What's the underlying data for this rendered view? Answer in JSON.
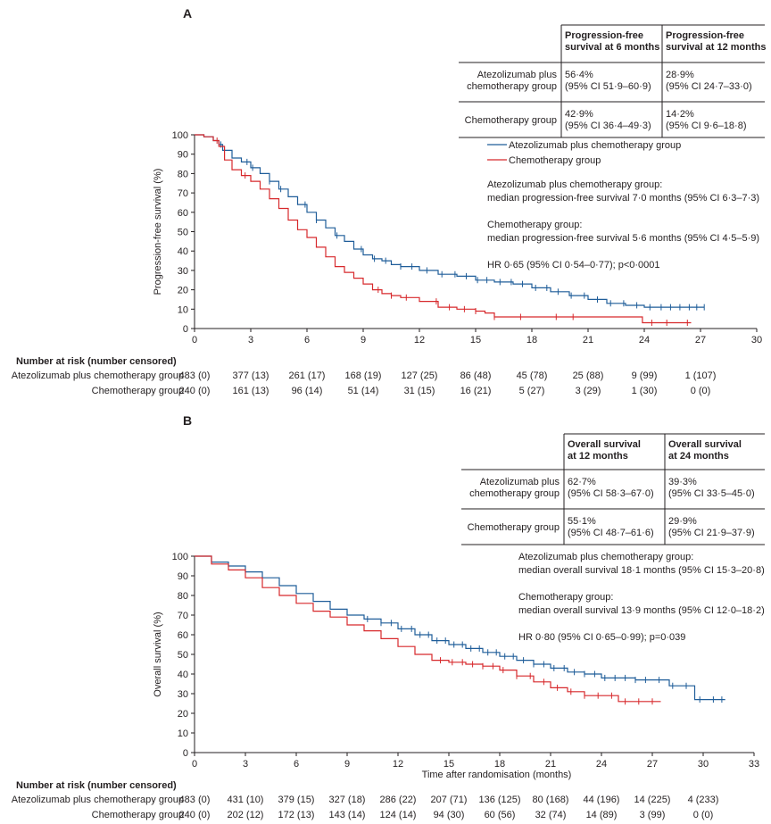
{
  "colors": {
    "atezo": "#1f5d99",
    "chemo": "#d7292c",
    "axis": "#231f20"
  },
  "chart_data": [
    {
      "id": "A",
      "type": "line",
      "panel_label": "A",
      "ylabel": "Progression-free survival (%)",
      "xlabel": "",
      "xlim": [
        0,
        30
      ],
      "ylim": [
        0,
        100
      ],
      "xticks": [
        0,
        3,
        6,
        9,
        12,
        15,
        18,
        21,
        24,
        27,
        30
      ],
      "yticks": [
        0,
        10,
        20,
        30,
        40,
        50,
        60,
        70,
        80,
        90,
        100
      ],
      "legend_position": "right",
      "series": [
        {
          "key": "atezo",
          "name": "Atezolizumab plus chemotherapy group",
          "x": [
            0,
            0.5,
            1,
            1.3,
            1.5,
            2,
            2.5,
            3,
            3.5,
            4,
            4.5,
            5,
            5.5,
            6,
            6.5,
            7,
            7.5,
            8,
            8.5,
            9,
            9.5,
            10,
            10.5,
            11,
            12,
            13,
            14,
            15,
            16,
            17,
            18,
            19,
            20,
            21,
            22,
            23,
            24,
            25,
            26,
            27.2
          ],
          "y": [
            100,
            99,
            97,
            95,
            92,
            88,
            86,
            83,
            80,
            76,
            72,
            68,
            64,
            60,
            56,
            52,
            48,
            45,
            41,
            38,
            36,
            35,
            33,
            32,
            30,
            28,
            27,
            25,
            24,
            23,
            21,
            19,
            17,
            15,
            13,
            12,
            11,
            11,
            11,
            11
          ],
          "censors": [
            1.4,
            2.8,
            3.1,
            4.0,
            4.6,
            5.9,
            6.5,
            7.6,
            8.9,
            9.6,
            10.2,
            11.0,
            11.6,
            12.4,
            13.2,
            13.9,
            14.5,
            15.1,
            15.6,
            16.3,
            16.9,
            17.5,
            18.2,
            18.8,
            19.4,
            20.1,
            20.8,
            21.5,
            22.2,
            22.9,
            23.6,
            24.3,
            24.9,
            25.4,
            25.9,
            26.4,
            26.8,
            27.2
          ]
        },
        {
          "key": "chemo",
          "name": "Chemotherapy group",
          "x": [
            0,
            0.5,
            1,
            1.3,
            1.6,
            2,
            2.5,
            3,
            3.5,
            4,
            4.5,
            5,
            5.5,
            6,
            6.5,
            7,
            7.5,
            8,
            8.5,
            9,
            9.5,
            10,
            10.5,
            11,
            12,
            13,
            14,
            15,
            15.5,
            16,
            17,
            18,
            19,
            20,
            21,
            22,
            23,
            23.9,
            24.5,
            25.5,
            26.5
          ],
          "y": [
            100,
            99,
            97,
            94,
            87,
            82,
            79,
            76,
            72,
            67,
            62,
            56,
            51,
            47,
            42,
            37,
            32,
            29,
            26,
            23,
            20,
            18,
            17,
            16,
            14,
            11,
            10,
            9,
            8,
            6,
            6,
            6,
            6,
            6,
            6,
            6,
            6,
            3,
            3,
            3,
            3
          ],
          "censors": [
            1.2,
            2.7,
            9.8,
            10.5,
            11.3,
            12.9,
            13.6,
            14.4,
            15.0,
            16.0,
            17.4,
            19.3,
            20.2,
            24.4,
            25.2,
            26.3
          ]
        }
      ],
      "info_table": {
        "headers": [
          "Progression-free\nsurvival at 6 months",
          "Progression-free\nsurvival at 12 months"
        ],
        "rows": [
          {
            "label": "Atezolizumab plus\nchemotherapy group",
            "cells": [
              "56·4%\n(95% CI 51·9–60·9)",
              "28·9%\n(95% CI 24·7–33·0)"
            ]
          },
          {
            "label": "Chemotherapy group",
            "cells": [
              "42·9%\n(95% CI 36·4–49·3)",
              "14·2%\n(95% CI 9·6–18·8)"
            ]
          }
        ]
      },
      "annotations": [
        "Atezolizumab plus chemotherapy group:",
        "median progression-free survival 7·0 months (95% CI 6·3–7·3)",
        "Chemotherapy group:",
        "median progression-free survival 5·6 months (95% CI 4·5–5·9)",
        "HR 0·65 (95% CI 0·54–0·77); p<0·0001"
      ],
      "risk_table": {
        "title": "Number at risk (number censored)",
        "rows": [
          {
            "label": "Atezolizumab plus chemotherapy group",
            "values": [
              "483 (0)",
              "377 (13)",
              "261 (17)",
              "168 (19)",
              "127 (25)",
              "86 (48)",
              "45 (78)",
              "25 (88)",
              "9 (99)",
              "1 (107)"
            ]
          },
          {
            "label": "Chemotherapy group",
            "values": [
              "240 (0)",
              "161 (13)",
              "96 (14)",
              "51 (14)",
              "31 (15)",
              "16 (21)",
              "5 (27)",
              "3 (29)",
              "1 (30)",
              "0 (0)"
            ]
          }
        ]
      }
    },
    {
      "id": "B",
      "type": "line",
      "panel_label": "B",
      "ylabel": "Overall survival (%)",
      "xlabel": "Time after randomisation (months)",
      "xlim": [
        0,
        33
      ],
      "ylim": [
        0,
        100
      ],
      "xticks": [
        0,
        3,
        6,
        9,
        12,
        15,
        18,
        21,
        24,
        27,
        30,
        33
      ],
      "yticks": [
        0,
        10,
        20,
        30,
        40,
        50,
        60,
        70,
        80,
        90,
        100
      ],
      "series": [
        {
          "key": "atezo",
          "name": "Atezolizumab plus chemotherapy group",
          "x": [
            0,
            1,
            2,
            3,
            4,
            5,
            6,
            7,
            8,
            9,
            10,
            11,
            12,
            13,
            14,
            15,
            16,
            17,
            18,
            19,
            20,
            21,
            22,
            23,
            24,
            25,
            26,
            27,
            28,
            28.8,
            29.5,
            31.3
          ],
          "y": [
            100,
            97,
            95,
            92,
            89,
            85,
            81,
            77,
            73,
            70,
            68,
            66,
            63,
            60,
            57,
            55,
            53,
            51,
            49,
            47,
            45,
            43,
            41,
            40,
            38,
            38,
            37,
            37,
            34,
            34,
            27,
            27
          ],
          "censors": [
            10.2,
            11.0,
            11.6,
            12.2,
            12.8,
            13.3,
            13.8,
            14.3,
            14.8,
            15.3,
            15.8,
            16.3,
            16.8,
            17.3,
            17.8,
            18.3,
            18.8,
            19.4,
            20.0,
            20.6,
            21.2,
            21.8,
            22.4,
            23.0,
            23.6,
            24.2,
            24.8,
            25.4,
            26.0,
            26.6,
            27.4,
            28.2,
            29.0,
            29.8,
            30.6,
            31.1
          ]
        },
        {
          "key": "chemo",
          "name": "Chemotherapy group",
          "x": [
            0,
            1,
            2,
            3,
            4,
            5,
            6,
            7,
            8,
            9,
            10,
            11,
            12,
            13,
            14,
            15,
            16,
            17,
            18,
            19,
            20,
            21,
            22,
            23,
            24,
            25,
            26,
            27.5
          ],
          "y": [
            100,
            96,
            93,
            89,
            84,
            80,
            76,
            72,
            69,
            65,
            62,
            58,
            54,
            50,
            47,
            46,
            45,
            44,
            42,
            39,
            36,
            33,
            31,
            29,
            29,
            26,
            26,
            26
          ],
          "censors": [
            14.5,
            15.2,
            15.8,
            16.4,
            17.0,
            17.6,
            18.2,
            19.0,
            19.8,
            20.6,
            21.4,
            22.2,
            23.0,
            23.8,
            24.6,
            25.4,
            26.2,
            27.0
          ]
        }
      ],
      "info_table": {
        "headers": [
          "Overall survival\nat 12 months",
          "Overall survival\nat 24 months"
        ],
        "rows": [
          {
            "label": "Atezolizumab plus\nchemotherapy group",
            "cells": [
              "62·7%\n(95% CI 58·3–67·0)",
              "39·3%\n(95% CI 33·5–45·0)"
            ]
          },
          {
            "label": "Chemotherapy group",
            "cells": [
              "55·1%\n(95% CI 48·7–61·6)",
              "29·9%\n(95% CI 21·9–37·9)"
            ]
          }
        ]
      },
      "annotations": [
        "Atezolizumab plus chemotherapy group:",
        "median overall survival 18·1 months (95% CI 15·3–20·8)",
        "Chemotherapy group:",
        "median overall survival 13·9 months (95% CI 12·0–18·2)",
        "HR 0·80 (95% CI 0·65–0·99); p=0·039"
      ],
      "risk_table": {
        "title": "Number at risk (number censored)",
        "rows": [
          {
            "label": "Atezolizumab plus chemotherapy group",
            "values": [
              "483 (0)",
              "431 (10)",
              "379 (15)",
              "327 (18)",
              "286 (22)",
              "207 (71)",
              "136 (125)",
              "80 (168)",
              "44 (196)",
              "14 (225)",
              "4 (233)"
            ]
          },
          {
            "label": "Chemotherapy group",
            "values": [
              "240 (0)",
              "202 (12)",
              "172 (13)",
              "143 (14)",
              "124 (14)",
              "94 (30)",
              "60 (56)",
              "32 (74)",
              "14 (89)",
              "3 (99)",
              "0 (0)"
            ]
          }
        ]
      }
    }
  ]
}
